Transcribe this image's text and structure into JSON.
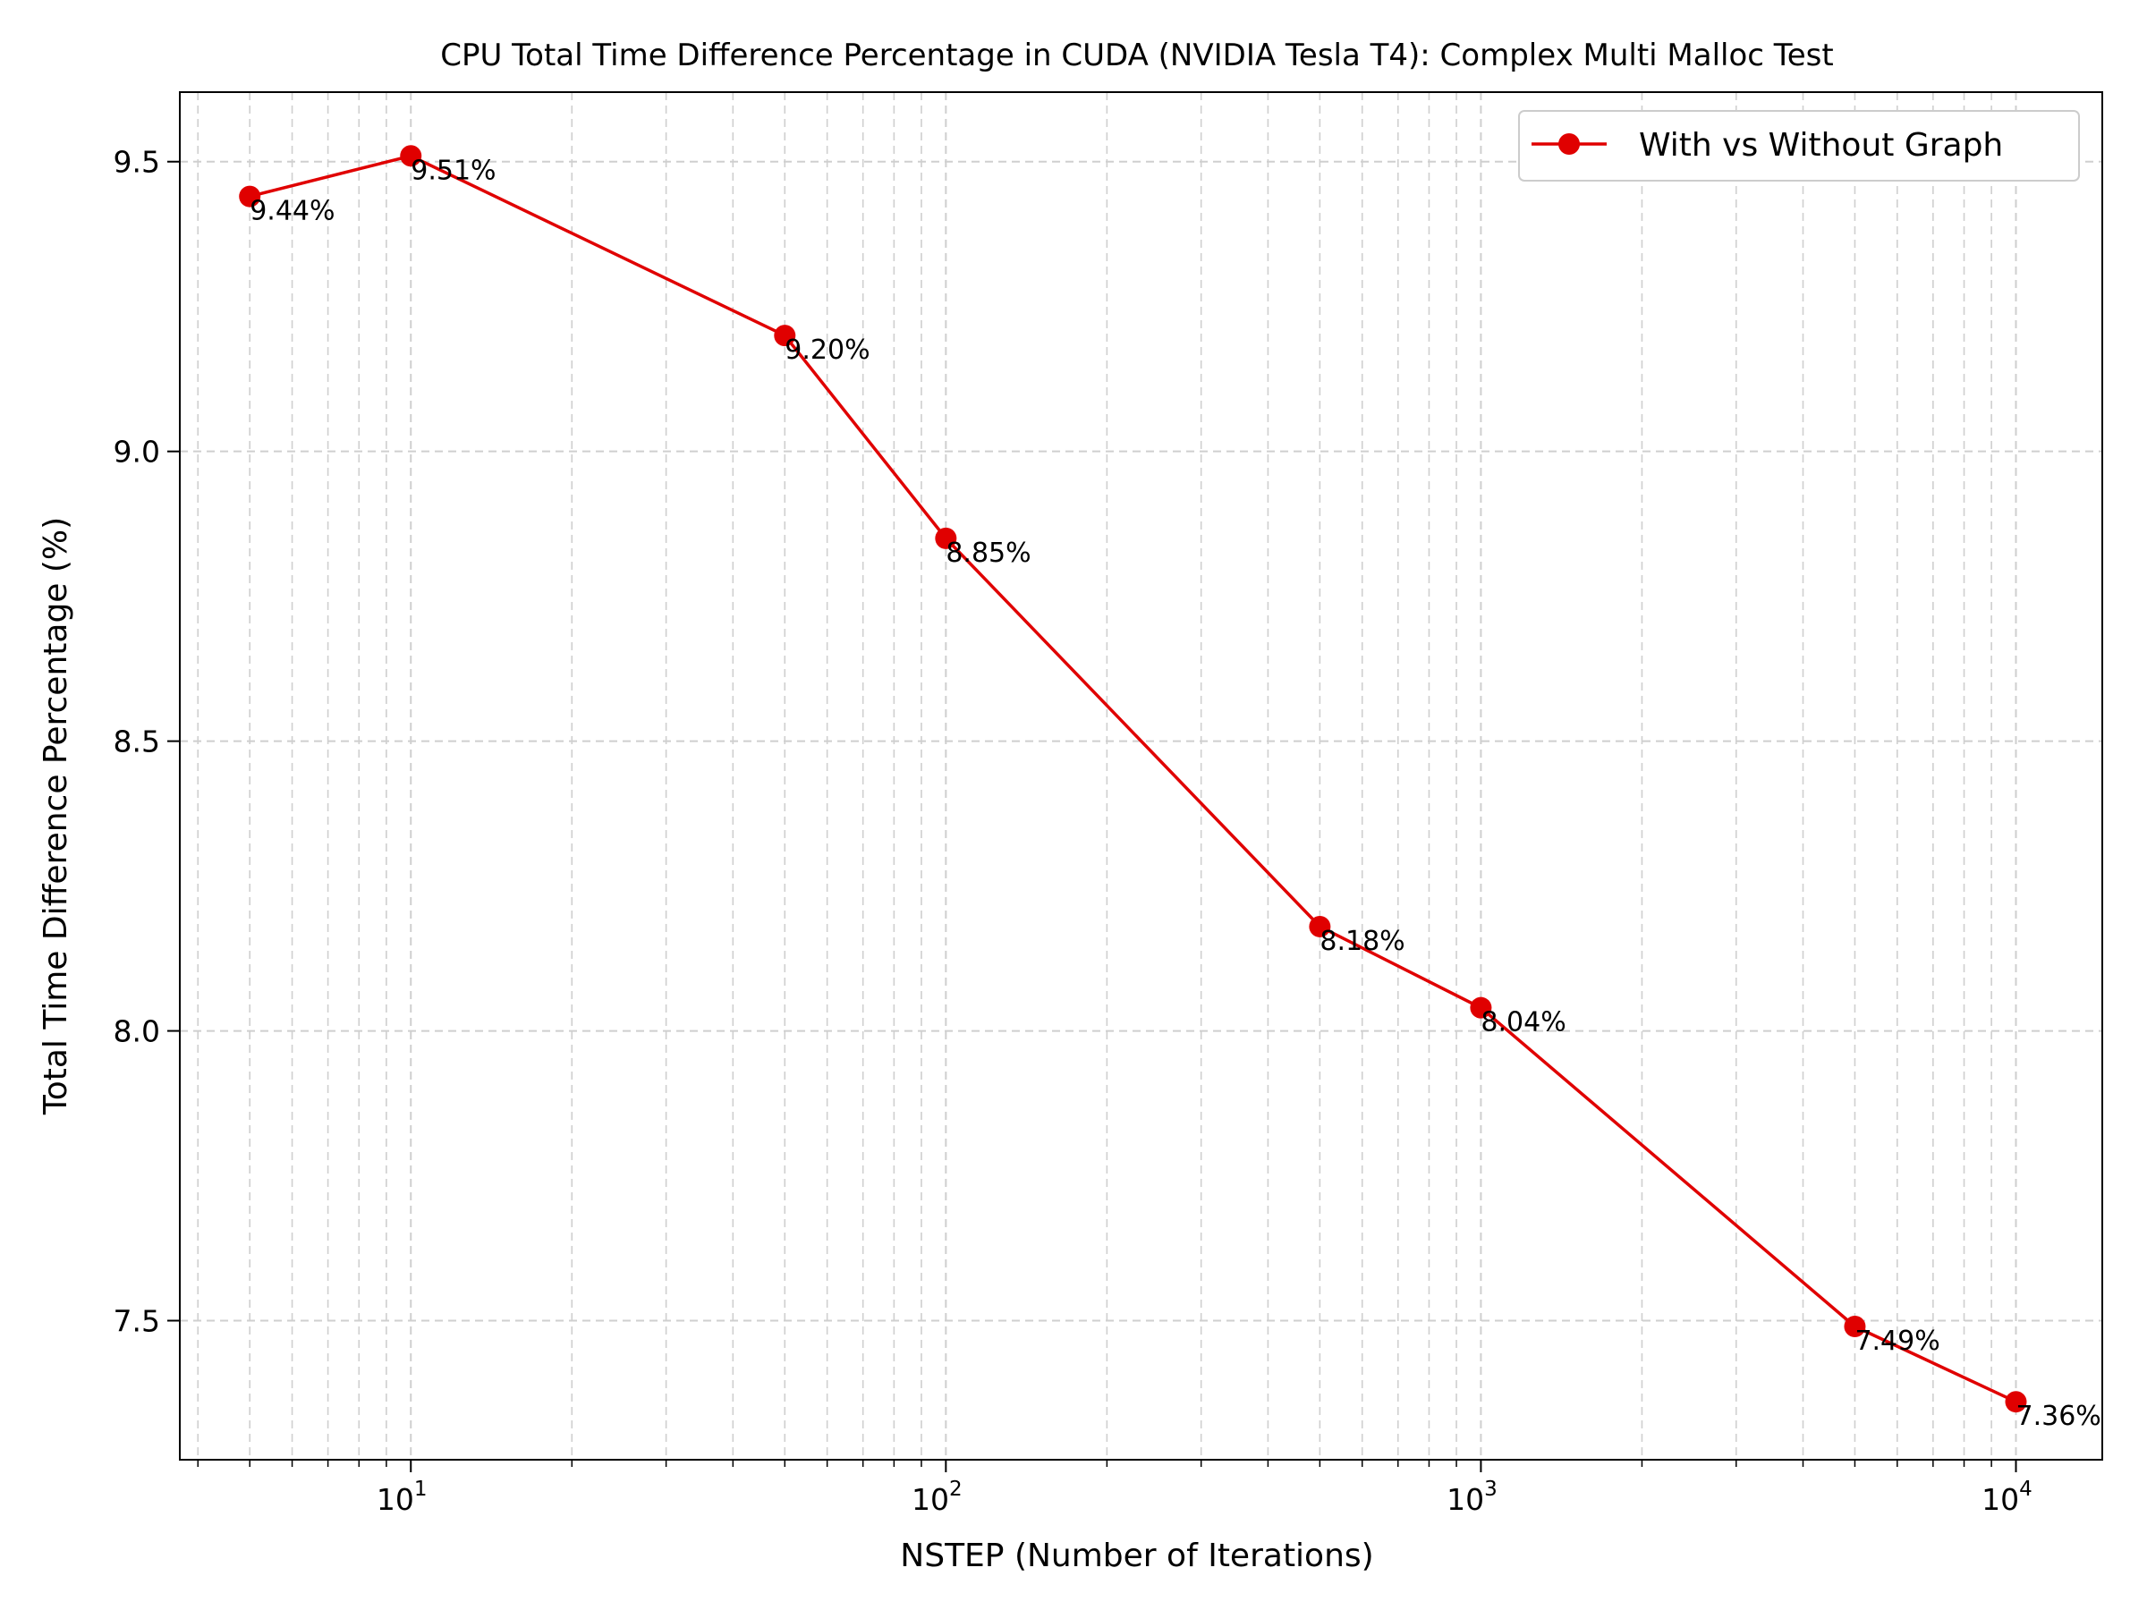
{
  "chart_data": {
    "type": "line",
    "title": "CPU Total Time Difference Percentage in CUDA (NVIDIA Tesla T4): Complex Multi Malloc Test",
    "xlabel": "NSTEP (Number of Iterations)",
    "ylabel": "Total Time Difference Percentage (%)",
    "xscale": "log",
    "xlim": [
      3.7,
      14500
    ],
    "ylim": [
      7.26,
      9.62
    ],
    "x_ticks": [
      10,
      100,
      1000,
      10000
    ],
    "x_tick_labels": [
      {
        "base": "10",
        "exp": "1"
      },
      {
        "base": "10",
        "exp": "2"
      },
      {
        "base": "10",
        "exp": "3"
      },
      {
        "base": "10",
        "exp": "4"
      }
    ],
    "y_ticks": [
      7.5,
      8.0,
      8.5,
      9.0,
      9.5
    ],
    "y_tick_labels": [
      "7.5",
      "8.0",
      "8.5",
      "9.0",
      "9.5"
    ],
    "grid": true,
    "legend_position": "top-right",
    "series": [
      {
        "name": "With vs Without Graph",
        "color": "#e00000",
        "x": [
          5,
          10,
          50,
          100,
          500,
          1000,
          5000,
          10000
        ],
        "values": [
          9.44,
          9.51,
          9.2,
          8.85,
          8.18,
          8.04,
          7.49,
          7.36
        ],
        "labels": [
          "9.44%",
          "9.51%",
          "9.20%",
          "8.85%",
          "8.18%",
          "8.04%",
          "7.49%",
          "7.36%"
        ]
      }
    ]
  }
}
